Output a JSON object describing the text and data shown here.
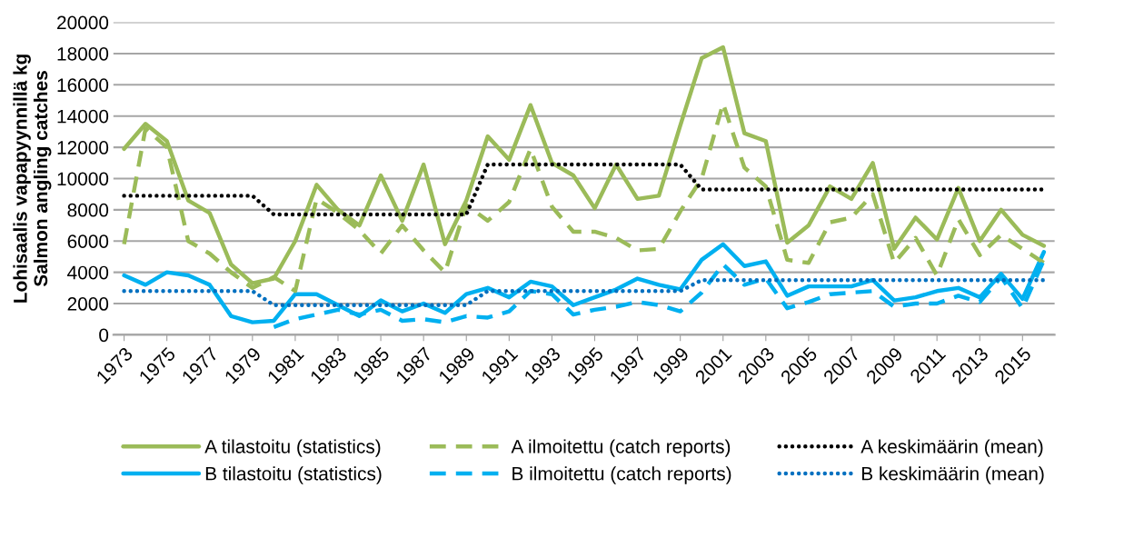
{
  "chart_data": {
    "type": "line",
    "ylabel": "Lohisaalis vapapyynnillä kg\nSalmon angling catches",
    "categories": [
      "1973",
      null,
      "1975",
      null,
      "1977",
      null,
      "1979",
      null,
      "1981",
      null,
      "1983",
      null,
      "1985",
      null,
      "1987",
      null,
      "1989",
      null,
      "1991",
      null,
      "1993",
      null,
      "1995",
      null,
      "1997",
      null,
      "1999",
      null,
      "2001",
      null,
      "2003",
      null,
      "2005",
      null,
      "2007",
      null,
      "2009",
      null,
      "2011",
      null,
      "2013",
      null,
      "2015",
      null
    ],
    "series": [
      {
        "name": "A tilastoitu (statistics)",
        "color": "#9bbb59",
        "line_style": "solid",
        "values": [
          11900,
          13500,
          12400,
          8600,
          7800,
          4500,
          3300,
          3600,
          6000,
          9600,
          8000,
          7000,
          10200,
          7300,
          10900,
          5800,
          8600,
          12700,
          11200,
          14700,
          11000,
          10200,
          8100,
          10900,
          8700,
          8900,
          13400,
          17700,
          18400,
          12900,
          12400,
          5900,
          7000,
          9500,
          8700,
          11000,
          5500,
          7500,
          6100,
          9400,
          6000,
          8000,
          6400,
          5700
        ]
      },
      {
        "name": "B tilastoitu (statistics)",
        "color": "#00b0f0",
        "line_style": "solid",
        "values": [
          3800,
          3200,
          4000,
          3800,
          3200,
          1200,
          800,
          900,
          2600,
          2600,
          1900,
          1200,
          2200,
          1500,
          2000,
          1400,
          2600,
          3000,
          2400,
          3400,
          3100,
          1900,
          2400,
          2900,
          3600,
          3200,
          2900,
          4800,
          5800,
          4400,
          4700,
          2500,
          3100,
          3100,
          3100,
          3500,
          2200,
          2400,
          2800,
          3000,
          2400,
          3900,
          2300,
          5300
        ]
      },
      {
        "name": "A ilmoitettu (catch reports)",
        "color": "#9bbb59",
        "line_style": "dashed",
        "values": [
          5800,
          13200,
          12000,
          6000,
          5200,
          4000,
          3000,
          3700,
          2800,
          8700,
          7800,
          6700,
          5200,
          7000,
          5400,
          4000,
          8300,
          7300,
          8500,
          11900,
          8200,
          6600,
          6600,
          6200,
          5400,
          5500,
          7900,
          10000,
          14800,
          10700,
          9500,
          4800,
          4600,
          7200,
          7500,
          9000,
          4600,
          6200,
          3800,
          7400,
          5100,
          6400,
          5500,
          4600
        ]
      },
      {
        "name": "B ilmoitettu (catch reports)",
        "color": "#00b0f0",
        "line_style": "dashed",
        "values": [
          null,
          null,
          null,
          null,
          null,
          null,
          null,
          500,
          1000,
          1300,
          1600,
          1300,
          1600,
          900,
          1000,
          800,
          1200,
          1100,
          1500,
          2800,
          2600,
          1300,
          1600,
          1800,
          2100,
          1900,
          1500,
          2700,
          4500,
          3200,
          3600,
          1700,
          2100,
          2600,
          2700,
          2800,
          1800,
          2000,
          2000,
          2500,
          2100,
          3700,
          1700,
          4800
        ]
      },
      {
        "name": "A keskimäärin (mean)",
        "color": "#000000",
        "line_style": "dotted",
        "values": [
          8900,
          8900,
          8900,
          8900,
          8900,
          8900,
          8900,
          7700,
          7700,
          7700,
          7700,
          7700,
          7700,
          7700,
          7700,
          7700,
          7700,
          10900,
          10900,
          10900,
          10900,
          10900,
          10900,
          10900,
          10900,
          10900,
          10900,
          9300,
          9300,
          9300,
          9300,
          9300,
          9300,
          9300,
          9300,
          9300,
          9300,
          9300,
          9300,
          9300,
          9300,
          9300,
          9300,
          9300
        ]
      },
      {
        "name": "B keskimäärin (mean)",
        "color": "#0070c0",
        "line_style": "dotted",
        "values": [
          2800,
          2800,
          2800,
          2800,
          2800,
          2800,
          2800,
          1900,
          1900,
          1900,
          1900,
          1900,
          1900,
          1900,
          1900,
          1900,
          1900,
          2800,
          2800,
          2800,
          2800,
          2800,
          2800,
          2800,
          2800,
          2800,
          2800,
          3500,
          3500,
          3500,
          3500,
          3500,
          3500,
          3500,
          3500,
          3500,
          3500,
          3500,
          3500,
          3500,
          3500,
          3500,
          3500,
          3500
        ]
      }
    ],
    "ylim": [
      0,
      20000
    ],
    "yticks": [
      0,
      2000,
      4000,
      6000,
      8000,
      10000,
      12000,
      14000,
      16000,
      18000,
      20000
    ],
    "grid": "y",
    "legend": "bottom",
    "marker": "none"
  }
}
